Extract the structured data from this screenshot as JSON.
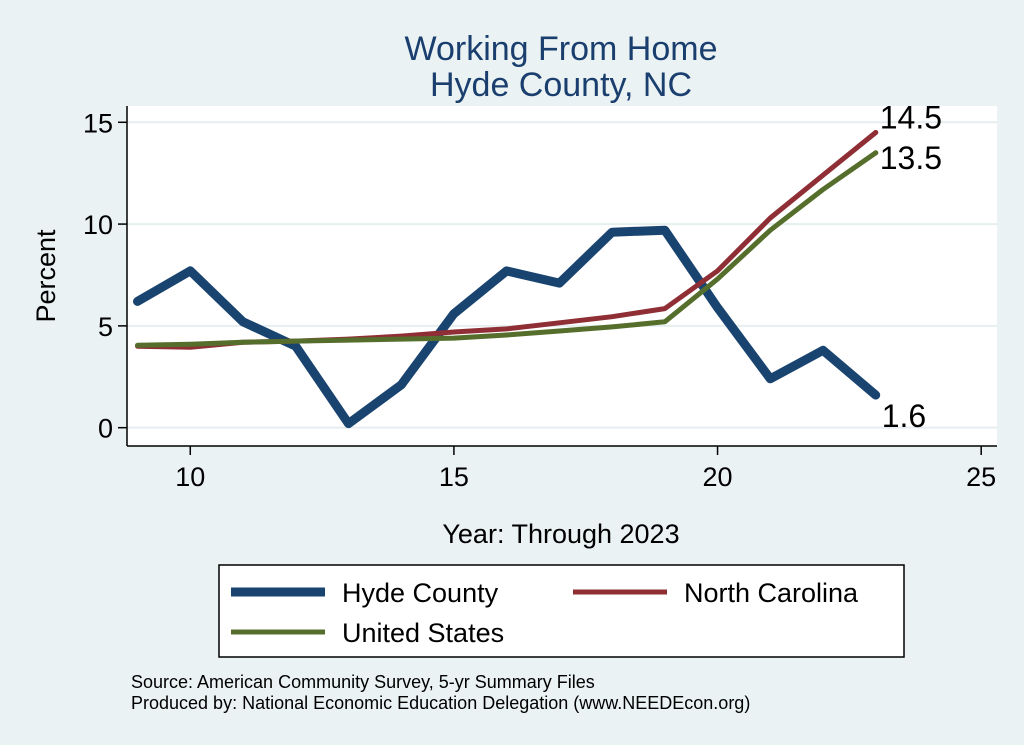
{
  "chart_data": {
    "type": "line",
    "title": [
      "Working From Home",
      "Hyde County, NC"
    ],
    "xlabel": "Year: Through 2023",
    "ylabel": "Percent",
    "xlim": [
      8.8,
      25.3
    ],
    "ylim": [
      -0.9,
      15.8
    ],
    "xticks": [
      10,
      15,
      20,
      25
    ],
    "yticks": [
      0,
      5,
      10,
      15
    ],
    "grid": true,
    "legend_position": "bottom",
    "series": [
      {
        "name": "Hyde County",
        "color": "#1a4470",
        "stroke_width": 9,
        "x": [
          9,
          10,
          11,
          12,
          13,
          14,
          15,
          16,
          17,
          18,
          19,
          20,
          21,
          22,
          23
        ],
        "y": [
          6.2,
          7.7,
          5.2,
          4.0,
          0.2,
          2.1,
          5.6,
          7.7,
          7.1,
          9.6,
          9.7,
          5.9,
          2.4,
          3.8,
          1.6
        ],
        "end_label": "1.6"
      },
      {
        "name": "North Carolina",
        "color": "#8f2f35",
        "stroke_width": 5,
        "x": [
          9,
          10,
          11,
          12,
          13,
          14,
          15,
          16,
          17,
          18,
          19,
          20,
          21,
          22,
          23
        ],
        "y": [
          4.0,
          3.95,
          4.2,
          4.25,
          4.35,
          4.5,
          4.7,
          4.85,
          5.15,
          5.45,
          5.85,
          7.7,
          10.3,
          12.4,
          14.5
        ],
        "end_label": "14.5"
      },
      {
        "name": "United States",
        "color": "#566e2c",
        "stroke_width": 5,
        "x": [
          9,
          10,
          11,
          12,
          13,
          14,
          15,
          16,
          17,
          18,
          19,
          20,
          21,
          22,
          23
        ],
        "y": [
          4.05,
          4.1,
          4.2,
          4.25,
          4.3,
          4.35,
          4.4,
          4.55,
          4.75,
          4.95,
          5.2,
          7.3,
          9.7,
          11.7,
          13.5
        ],
        "end_label": "13.5"
      }
    ]
  },
  "notes": {
    "source": "Source: American Community Survey, 5-yr Summary Files",
    "produced_by": "Produced by: National Economic Education Delegation (www.NEEDEcon.org)"
  }
}
